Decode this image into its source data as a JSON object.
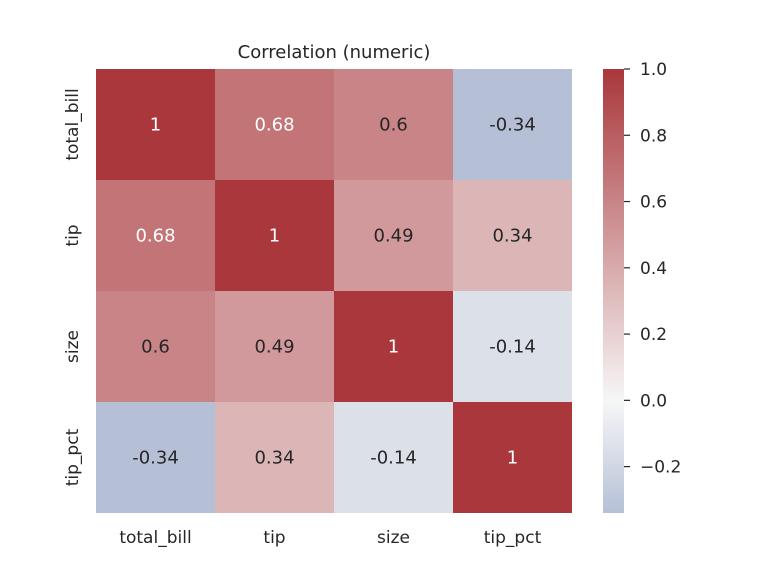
{
  "chart_data": {
    "type": "heatmap",
    "title": "Correlation (numeric)",
    "x_labels": [
      "total_bill",
      "tip",
      "size",
      "tip_pct"
    ],
    "y_labels": [
      "total_bill",
      "tip",
      "size",
      "tip_pct"
    ],
    "values": [
      [
        1,
        0.68,
        0.6,
        -0.34
      ],
      [
        0.68,
        1,
        0.49,
        0.34
      ],
      [
        0.6,
        0.49,
        1,
        -0.14
      ],
      [
        -0.34,
        0.34,
        -0.14,
        1
      ]
    ],
    "annotations": [
      [
        "1",
        "0.68",
        "0.6",
        "-0.34"
      ],
      [
        "0.68",
        "1",
        "0.49",
        "0.34"
      ],
      [
        "0.6",
        "0.49",
        "1",
        "-0.14"
      ],
      [
        "-0.34",
        "0.34",
        "-0.14",
        "1"
      ]
    ],
    "colormap": "diverging blue-white-red, centered at 0",
    "colors": {
      "negative": "#b5c0d6",
      "center": "#f7f7f7",
      "positive": "#a9373b"
    },
    "colorbar": {
      "range": [
        -0.34,
        1.0
      ],
      "ticks": [
        1.0,
        0.8,
        0.6,
        0.4,
        0.2,
        0.0,
        -0.2
      ],
      "tick_labels": [
        "1.0",
        "0.8",
        "0.6",
        "0.4",
        "0.2",
        "0.0",
        "−0.2"
      ]
    }
  }
}
